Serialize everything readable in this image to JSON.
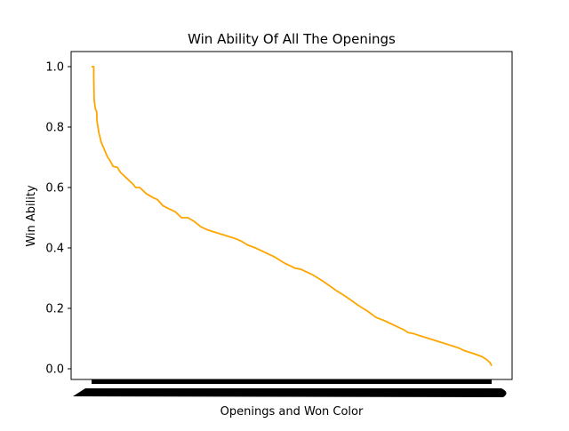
{
  "chart_data": {
    "type": "line",
    "title": "Win Ability Of All The Openings",
    "xlabel": "Openings and Won Color",
    "ylabel": "Win Ability",
    "ylim": [
      -0.035,
      1.05
    ],
    "yticks": [
      0.0,
      0.2,
      0.4,
      0.6,
      0.8,
      1.0
    ],
    "ytick_labels": [
      "0.0",
      "0.2",
      "0.4",
      "0.6",
      "0.8",
      "1.0"
    ],
    "grid": false,
    "x_tick_labels_note": "overlapping category labels rendered as solid black band",
    "series": [
      {
        "name": "Win Ability",
        "color": "#ffa500",
        "points": [
          [
            0.0,
            1.0
          ],
          [
            0.007,
            1.0
          ],
          [
            0.007,
            0.96
          ],
          [
            0.008,
            0.89
          ],
          [
            0.012,
            0.86
          ],
          [
            0.016,
            0.85
          ],
          [
            0.017,
            0.82
          ],
          [
            0.023,
            0.78
          ],
          [
            0.03,
            0.75
          ],
          [
            0.042,
            0.72
          ],
          [
            0.05,
            0.7
          ],
          [
            0.057,
            0.69
          ],
          [
            0.067,
            0.67
          ],
          [
            0.08,
            0.667
          ],
          [
            0.09,
            0.65
          ],
          [
            0.11,
            0.63
          ],
          [
            0.13,
            0.61
          ],
          [
            0.137,
            0.6
          ],
          [
            0.15,
            0.6
          ],
          [
            0.17,
            0.58
          ],
          [
            0.19,
            0.567
          ],
          [
            0.205,
            0.56
          ],
          [
            0.222,
            0.54
          ],
          [
            0.24,
            0.53
          ],
          [
            0.26,
            0.52
          ],
          [
            0.28,
            0.5
          ],
          [
            0.3,
            0.5
          ],
          [
            0.32,
            0.487
          ],
          [
            0.34,
            0.47
          ],
          [
            0.36,
            0.46
          ],
          [
            0.39,
            0.45
          ],
          [
            0.42,
            0.44
          ],
          [
            0.45,
            0.43
          ],
          [
            0.47,
            0.42
          ],
          [
            0.485,
            0.41
          ],
          [
            0.51,
            0.4
          ],
          [
            0.53,
            0.39
          ],
          [
            0.55,
            0.38
          ],
          [
            0.57,
            0.37
          ],
          [
            0.585,
            0.36
          ],
          [
            0.6,
            0.35
          ],
          [
            0.62,
            0.34
          ],
          [
            0.633,
            0.333
          ],
          [
            0.65,
            0.33
          ],
          [
            0.67,
            0.32
          ],
          [
            0.69,
            0.31
          ],
          [
            0.72,
            0.29
          ],
          [
            0.74,
            0.275
          ],
          [
            0.76,
            0.26
          ],
          [
            0.775,
            0.25
          ],
          [
            0.79,
            0.24
          ],
          [
            0.81,
            0.225
          ],
          [
            0.83,
            0.21
          ],
          [
            0.845,
            0.2
          ],
          [
            0.86,
            0.19
          ],
          [
            0.885,
            0.17
          ],
          [
            0.91,
            0.16
          ],
          [
            0.93,
            0.15
          ],
          [
            0.95,
            0.14
          ],
          [
            0.97,
            0.13
          ],
          [
            0.985,
            0.12
          ],
          [
            1.0,
            0.117
          ],
          [
            1.02,
            0.11
          ],
          [
            1.05,
            0.1
          ],
          [
            1.08,
            0.09
          ],
          [
            1.11,
            0.08
          ],
          [
            1.14,
            0.07
          ],
          [
            1.16,
            0.06
          ],
          [
            1.19,
            0.05
          ],
          [
            1.215,
            0.04
          ],
          [
            1.23,
            0.03
          ],
          [
            1.24,
            0.02
          ],
          [
            1.245,
            0.01
          ]
        ]
      }
    ]
  }
}
